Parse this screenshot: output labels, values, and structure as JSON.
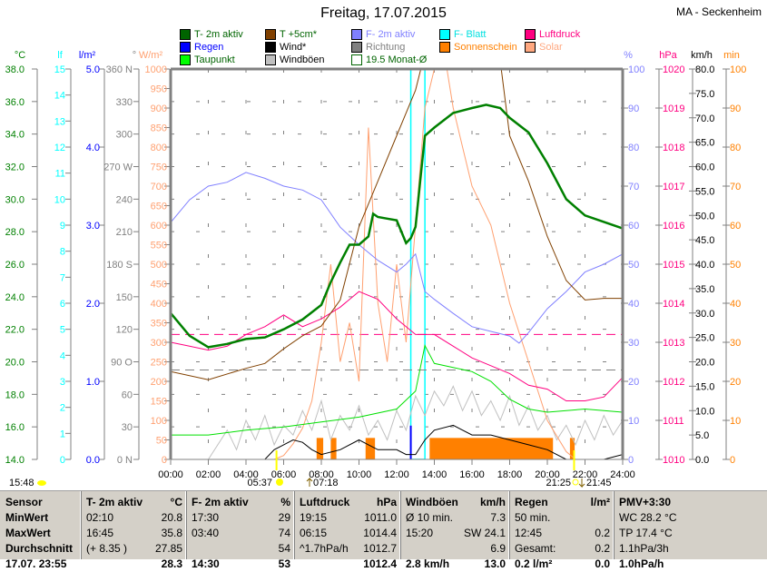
{
  "header": {
    "title": "Freitag, 17.07.2015",
    "station": "MA - Seckenheim"
  },
  "legend": [
    {
      "label": "T- 2m aktiv",
      "color": "#006400",
      "text": "#006400"
    },
    {
      "label": "T +5cm*",
      "color": "#804000",
      "text": "#006400"
    },
    {
      "label": "F- 2m aktiv",
      "color": "#8080ff",
      "text": "#8080ff"
    },
    {
      "label": "F- Blatt",
      "color": "#00ffff",
      "text": "#00e0e0"
    },
    {
      "label": "Luftdruck",
      "color": "#ff0080",
      "text": "#ff0080"
    },
    {
      "label": "Regen",
      "color": "#0000ff",
      "text": "#0000ff"
    },
    {
      "label": "Wind*",
      "color": "#000000",
      "text": "#000000"
    },
    {
      "label": "Richtung",
      "color": "#808080",
      "text": "#808080"
    },
    {
      "label": "Sonnenschein",
      "color": "#ff8000",
      "text": "#ff8000"
    },
    {
      "label": "Solar",
      "color": "#ffa880",
      "text": "#ffa880"
    },
    {
      "label": "Taupunkt",
      "color": "#00ff00",
      "text": "#006400"
    },
    {
      "label": "Windböen",
      "color": "#c0c0c0",
      "text": "#000000"
    },
    {
      "label": "19.5 Monat-Ø",
      "color": "none",
      "text": "#006400"
    }
  ],
  "chart_data": {
    "type": "line",
    "title": "Freitag, 17.07.2015",
    "xlabel": "Uhrzeit",
    "xlim": [
      0,
      24
    ],
    "x_ticks": [
      "00:00",
      "02:00",
      "04:00",
      "06:00",
      "08:00",
      "10:00",
      "12:00",
      "14:00",
      "16:00",
      "18:00",
      "20:00",
      "22:00",
      "24:00"
    ],
    "axes": [
      {
        "unit": "°C",
        "color": "#008000",
        "range": [
          14,
          38
        ],
        "labels": [
          "14.0",
          "16.0",
          "18.0",
          "20.0",
          "22.0",
          "24.0",
          "26.0",
          "28.0",
          "30.0",
          "32.0",
          "34.0",
          "36.0",
          "38.0"
        ]
      },
      {
        "unit": "lf",
        "color": "#00ffff",
        "range": [
          0,
          15
        ],
        "labels": [
          "0",
          "1",
          "2",
          "3",
          "4",
          "5",
          "6",
          "7",
          "8",
          "9",
          "10",
          "11",
          "12",
          "13",
          "14",
          "15"
        ]
      },
      {
        "unit": "l/m²",
        "color": "#0000ff",
        "range": [
          0,
          5
        ],
        "labels": [
          "0.0",
          "1.0",
          "2.0",
          "3.0",
          "4.0",
          "5.0"
        ]
      },
      {
        "unit": "°",
        "color": "#808080",
        "range": [
          0,
          360
        ],
        "labels": [
          "0 N",
          "30",
          "60",
          "90 O",
          "120",
          "150",
          "180 S",
          "210",
          "240",
          "270 W",
          "300",
          "330",
          "360 N"
        ]
      },
      {
        "unit": "W/m²",
        "color": "#ffa070",
        "range": [
          0,
          1000
        ],
        "labels": [
          "0",
          "50",
          "100",
          "150",
          "200",
          "250",
          "300",
          "350",
          "400",
          "450",
          "500",
          "550",
          "600",
          "650",
          "700",
          "750",
          "800",
          "850",
          "900",
          "950",
          "1000"
        ]
      },
      {
        "unit": "%",
        "color": "#8080ff",
        "range": [
          0,
          100
        ],
        "labels": [
          "0",
          "10",
          "20",
          "30",
          "40",
          "50",
          "60",
          "70",
          "80",
          "90",
          "100"
        ]
      },
      {
        "unit": "hPa",
        "color": "#ff0080",
        "range": [
          1010,
          1020
        ],
        "labels": [
          "1010",
          "1011",
          "1012",
          "1013",
          "1014",
          "1015",
          "1016",
          "1017",
          "1018",
          "1019",
          "1020"
        ]
      },
      {
        "unit": "km/h",
        "color": "#000000",
        "range": [
          0,
          80
        ],
        "labels": [
          "0.0",
          "5.0",
          "10.0",
          "15.0",
          "20.0",
          "25.0",
          "30.0",
          "35.0",
          "40.0",
          "45.0",
          "50.0",
          "55.0",
          "60.0",
          "65.0",
          "70.0",
          "75.0",
          "80.0"
        ]
      },
      {
        "unit": "min",
        "color": "#ff8000",
        "range": [
          0,
          100
        ],
        "labels": [
          "0",
          "10",
          "20",
          "30",
          "40",
          "50",
          "60",
          "70",
          "80",
          "90",
          "100"
        ]
      }
    ],
    "series": [
      {
        "name": "T- 2m aktiv",
        "axis": "°C",
        "color": "#008000",
        "width": 2.5,
        "x": [
          0,
          1,
          2,
          3,
          4,
          5,
          6,
          7,
          8,
          8.5,
          9,
          9.5,
          10,
          10.5,
          10.75,
          11,
          11.5,
          12,
          12.5,
          12.75,
          13,
          13.25,
          13.5,
          14,
          15,
          16,
          16.75,
          17.5,
          18,
          19,
          20,
          21,
          22,
          23,
          24
        ],
        "y": [
          23.0,
          21.6,
          20.9,
          21.1,
          21.4,
          21.5,
          22.0,
          22.6,
          23.5,
          24.9,
          26.1,
          27.2,
          27.2,
          27.7,
          29.1,
          28.9,
          28.8,
          28.7,
          27.3,
          27.6,
          28.3,
          31.1,
          33.9,
          34.4,
          35.3,
          35.6,
          35.8,
          35.6,
          35.0,
          34.1,
          32.2,
          30.0,
          29.0,
          28.6,
          28.2
        ]
      },
      {
        "name": "T +5cm*",
        "axis": "°C",
        "color": "#804000",
        "width": 1,
        "x": [
          0,
          2,
          4,
          5,
          6,
          7,
          8,
          9,
          10,
          11,
          12,
          13,
          13.5,
          14,
          17,
          17.5,
          18,
          19,
          20,
          21,
          22,
          23,
          24
        ],
        "y": [
          19.4,
          18.9,
          19.6,
          19.9,
          20.8,
          21.6,
          22.2,
          23.8,
          28.3,
          31.1,
          33.9,
          36.7,
          39,
          40,
          40,
          38.5,
          33.9,
          31.1,
          27.7,
          25.0,
          23.8,
          23.9,
          23.9
        ]
      },
      {
        "name": "F- 2m aktiv",
        "axis": "%",
        "color": "#8080ff",
        "width": 1,
        "x": [
          0,
          1,
          2,
          3,
          4,
          5,
          6,
          7,
          8,
          9,
          10,
          11,
          12,
          12.5,
          13,
          13.5,
          14,
          15,
          16,
          17,
          18,
          18.5,
          19,
          20,
          21,
          22,
          23,
          24
        ],
        "y": [
          60.7,
          66.5,
          70,
          71,
          73.5,
          72,
          70,
          69,
          66.5,
          59.5,
          55,
          51,
          48,
          50,
          52.6,
          43,
          41,
          37.4,
          34,
          32.8,
          31.6,
          29.8,
          32.5,
          38.6,
          43,
          48,
          50,
          52.6
        ]
      },
      {
        "name": "Taupunkt",
        "axis": "°C",
        "color": "#00e000",
        "width": 1,
        "x": [
          0,
          2,
          4,
          6,
          8,
          10,
          12,
          13,
          13.5,
          14,
          16,
          17,
          18,
          19,
          20,
          22,
          24
        ],
        "y": [
          15.5,
          15.5,
          15.8,
          16.0,
          16.3,
          16.6,
          17.1,
          18.2,
          21.0,
          19.9,
          19.4,
          18.8,
          17.7,
          17.1,
          16.9,
          17.1,
          16.9
        ]
      },
      {
        "name": "Luftdruck",
        "axis": "hPa",
        "color": "#ff0080",
        "width": 1,
        "x": [
          0,
          1,
          2,
          3,
          4,
          5,
          6,
          7,
          8,
          9,
          10,
          11,
          12,
          13,
          14,
          15,
          16,
          17,
          18,
          19,
          20,
          21,
          22,
          23,
          24
        ],
        "y": [
          1013.0,
          1012.9,
          1012.8,
          1012.9,
          1013.2,
          1013.4,
          1013.7,
          1013.4,
          1013.6,
          1013.9,
          1014.3,
          1014.1,
          1013.6,
          1013.2,
          1013.2,
          1012.9,
          1012.6,
          1012.4,
          1012.2,
          1011.9,
          1011.8,
          1011.5,
          1011.5,
          1011.6,
          1012.1
        ]
      },
      {
        "name": "Solar",
        "axis": "W/m²",
        "color": "#ffa070",
        "width": 1,
        "x": [
          0,
          5.5,
          6,
          6.5,
          7,
          7.5,
          8,
          8.5,
          9,
          9.5,
          10,
          10.5,
          11,
          11.5,
          12,
          12.5,
          13,
          13.5,
          14,
          14.5,
          15,
          15.5,
          16,
          17,
          18,
          19,
          20,
          21,
          21.5,
          24
        ],
        "y": [
          0,
          0,
          10,
          40,
          80,
          150,
          300,
          500,
          250,
          350,
          200,
          850,
          400,
          250,
          500,
          300,
          600,
          900,
          1000,
          1050,
          900,
          800,
          700,
          600,
          400,
          250,
          100,
          20,
          0,
          0
        ]
      },
      {
        "name": "Windböen",
        "axis": "km/h",
        "color": "#c0c0c0",
        "width": 1,
        "x": [
          0,
          2,
          2.5,
          3,
          3.5,
          4,
          4.5,
          5,
          5.5,
          6,
          6.5,
          7,
          7.5,
          8,
          8.5,
          9,
          9.5,
          10,
          10.5,
          11,
          11.5,
          12,
          12.5,
          13,
          13.5,
          14,
          14.5,
          15,
          15.5,
          16,
          16.5,
          17,
          17.5,
          18,
          18.5,
          19,
          19.5,
          20,
          20.5,
          21,
          21.5,
          22,
          22.5,
          23,
          23.5,
          24
        ],
        "y": [
          0,
          0,
          3,
          6,
          2,
          8,
          4,
          9,
          3,
          7,
          5,
          10,
          6,
          12,
          4,
          9,
          6,
          11,
          5,
          8,
          4,
          10,
          6,
          13,
          9,
          14,
          11,
          15,
          10,
          14,
          9,
          12,
          8,
          13,
          7,
          11,
          6,
          9,
          4,
          7,
          3,
          8,
          4,
          9,
          5,
          8
        ]
      },
      {
        "name": "Wind*",
        "axis": "km/h",
        "color": "#000000",
        "width": 1,
        "x": [
          0,
          5,
          5.5,
          6,
          6.5,
          7,
          7.5,
          8,
          9,
          10,
          10.5,
          11,
          12,
          12.5,
          13,
          13.5,
          14,
          15,
          16,
          17,
          18,
          19,
          20,
          21,
          22,
          23,
          24
        ],
        "y": [
          0,
          0,
          2,
          3,
          4,
          3.5,
          2,
          1,
          2,
          4,
          3,
          2,
          2,
          1,
          1,
          4,
          6,
          7,
          5,
          5,
          4,
          3,
          2,
          0,
          0,
          0,
          1
        ]
      }
    ],
    "sunshine_intervals": [
      [
        7.75,
        8.1
      ],
      [
        8.5,
        8.8
      ],
      [
        10.35,
        10.85
      ],
      [
        13.75,
        20.3
      ],
      [
        21.2,
        21.45
      ]
    ],
    "leaf_wetness_interval": [
      12.75,
      13.5
    ],
    "rain_at": 12.75,
    "reference_lines": [
      {
        "axis": "hPa",
        "value": 1013.2,
        "color": "#ff0080"
      },
      {
        "axis": "°C",
        "value": 19.5,
        "color": "#808080"
      }
    ],
    "sun_events": {
      "left": "15:48",
      "sunrise": "05:37",
      "moonrise": "07:18",
      "sunset": "21:25",
      "moonset": "21:45"
    }
  },
  "table": {
    "columns": [
      {
        "h1": "Sensor",
        "h2": "",
        "rows": [
          [
            "MinWert",
            ""
          ],
          [
            "MaxWert",
            ""
          ],
          [
            "Durchschnitt",
            ""
          ],
          [
            "17.07. 23:55",
            ""
          ]
        ]
      },
      {
        "h1": "T- 2m aktiv",
        "h2": "°C",
        "rows": [
          [
            "02:10",
            "20.8"
          ],
          [
            "16:45",
            "35.8"
          ],
          [
            "(+ 8.35 )",
            "27.85"
          ],
          [
            "",
            "28.3"
          ]
        ]
      },
      {
        "h1": "F- 2m aktiv",
        "h2": "%",
        "rows": [
          [
            "17:30",
            "29"
          ],
          [
            "03:40",
            "74"
          ],
          [
            "",
            "54"
          ],
          [
            "14:30",
            "53"
          ]
        ]
      },
      {
        "h1": "Luftdruck",
        "h2": "hPa",
        "rows": [
          [
            "19:15",
            "1011.0"
          ],
          [
            "06:15",
            "1014.4"
          ],
          [
            "^1.7hPa/h",
            "1012.7"
          ],
          [
            "",
            "1012.4"
          ]
        ]
      },
      {
        "h1": "Windböen",
        "h2": "km/h",
        "rows": [
          [
            "Ø 10 min.",
            "7.3"
          ],
          [
            "15:20",
            "SW 24.1"
          ],
          [
            "",
            "6.9"
          ],
          [
            "2.8 km/h",
            "13.0"
          ]
        ]
      },
      {
        "h1": "Regen",
        "h2": "l/m²",
        "rows": [
          [
            "50 min.",
            ""
          ],
          [
            "12:45",
            "0.2"
          ],
          [
            "Gesamt:",
            "0.2"
          ],
          [
            "0.2 l/m²",
            "0.0"
          ]
        ]
      },
      {
        "h1": "PMV+3:30",
        "h2": "",
        "rows": [
          [
            "WC 28.2 °C",
            ""
          ],
          [
            "TP 17.4 °C",
            ""
          ],
          [
            "1.1hPa/3h",
            ""
          ],
          [
            "1.0hPa/h",
            ""
          ]
        ]
      }
    ]
  }
}
